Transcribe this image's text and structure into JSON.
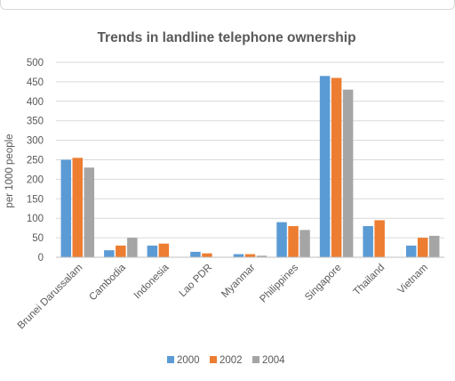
{
  "chart_data": {
    "type": "bar",
    "title": "Trends in landline telephone ownership",
    "xlabel": "",
    "ylabel": "per 1000 people",
    "ylim": [
      0,
      500
    ],
    "yticks": [
      0,
      50,
      100,
      150,
      200,
      250,
      300,
      350,
      400,
      450,
      500
    ],
    "grid": true,
    "legend_position": "bottom",
    "categories": [
      "Brunei Darussalam",
      "Cambodia",
      "Indonesia",
      "Lao PDR",
      "Myanmar",
      "Philippines",
      "Singapore",
      "Thailand",
      "Vietnam"
    ],
    "series": [
      {
        "name": "2000",
        "color": "#5b9bd5",
        "values": [
          250,
          18,
          30,
          14,
          8,
          90,
          465,
          80,
          30
        ]
      },
      {
        "name": "2002",
        "color": "#ed7d31",
        "values": [
          255,
          30,
          35,
          10,
          8,
          80,
          460,
          95,
          50
        ]
      },
      {
        "name": "2004",
        "color": "#a5a5a5",
        "values": [
          230,
          50,
          0,
          0,
          4,
          70,
          430,
          0,
          55
        ]
      }
    ]
  }
}
